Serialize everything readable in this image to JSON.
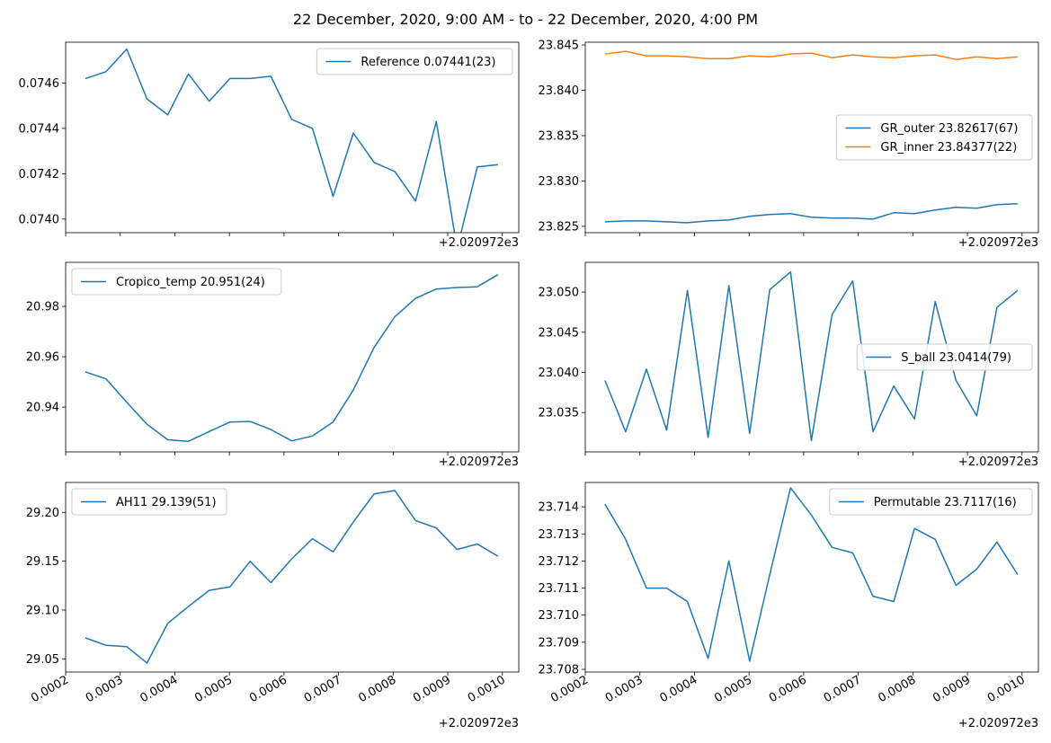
{
  "figure": {
    "title": "22 December, 2020, 9:00 AM - to - 22 December, 2020, 4:00 PM"
  },
  "colors": {
    "blue": "#1f77b4",
    "orange": "#ff7f0e"
  },
  "chart_data": [
    {
      "type": "line",
      "offset_label": "+2.020972e3",
      "xlim": [
        0.0002,
        0.00103
      ],
      "ylim": [
        0.07394,
        0.07478
      ],
      "yticks": [
        "0.0740",
        "0.0742",
        "0.0744",
        "0.0746"
      ],
      "legend_position": "top-right",
      "x": [
        0.000236,
        0.000274,
        0.000312,
        0.000349,
        0.000387,
        0.000425,
        0.000463,
        0.000501,
        0.000538,
        0.000576,
        0.000614,
        0.000652,
        0.00069,
        0.000727,
        0.000765,
        0.000803,
        0.000841,
        0.000879,
        0.000917,
        0.000954,
        0.000992
      ],
      "series": [
        {
          "name": "Reference 0.07441(23)",
          "color": "#1f77b4",
          "values": [
            0.07462,
            0.07465,
            0.07475,
            0.07453,
            0.07446,
            0.07464,
            0.07452,
            0.07462,
            0.07462,
            0.07463,
            0.07444,
            0.0744,
            0.0741,
            0.07438,
            0.07425,
            0.07421,
            0.07408,
            0.07443,
            0.07387,
            0.07423,
            0.07424
          ]
        }
      ]
    },
    {
      "type": "line",
      "offset_label": "+2.020972e3",
      "xlim": [
        0.0002,
        0.00103
      ],
      "ylim": [
        23.8243,
        23.8453
      ],
      "yticks": [
        "23.825",
        "23.830",
        "23.835",
        "23.840",
        "23.845"
      ],
      "legend_position": "center-right",
      "x": [
        0.000236,
        0.000274,
        0.000312,
        0.000349,
        0.000387,
        0.000425,
        0.000463,
        0.000501,
        0.000538,
        0.000576,
        0.000614,
        0.000652,
        0.00069,
        0.000727,
        0.000765,
        0.000803,
        0.000841,
        0.000879,
        0.000917,
        0.000954,
        0.000992
      ],
      "series": [
        {
          "name": "GR_outer 23.82617(67)",
          "color": "#1f77b4",
          "values": [
            23.8255,
            23.8256,
            23.8256,
            23.8255,
            23.8254,
            23.8256,
            23.8257,
            23.8261,
            23.8263,
            23.8264,
            23.826,
            23.8259,
            23.8259,
            23.8258,
            23.8265,
            23.8264,
            23.8268,
            23.8271,
            23.827,
            23.8274,
            23.8275
          ]
        },
        {
          "name": "GR_inner 23.84377(22)",
          "color": "#ff7f0e",
          "values": [
            23.844,
            23.8443,
            23.8438,
            23.8438,
            23.8437,
            23.8435,
            23.8435,
            23.8438,
            23.8437,
            23.844,
            23.8441,
            23.8436,
            23.8439,
            23.8437,
            23.8436,
            23.8438,
            23.8439,
            23.8434,
            23.8437,
            23.8435,
            23.8437
          ]
        }
      ]
    },
    {
      "type": "line",
      "offset_label": "+2.020972e3",
      "xlim": [
        0.0002,
        0.00103
      ],
      "ylim": [
        20.9222,
        20.9975
      ],
      "yticks": [
        "20.94",
        "20.96",
        "20.98"
      ],
      "legend_position": "top-left",
      "x": [
        0.000236,
        0.000274,
        0.000312,
        0.000349,
        0.000387,
        0.000425,
        0.000463,
        0.000501,
        0.000538,
        0.000576,
        0.000614,
        0.000652,
        0.00069,
        0.000727,
        0.000765,
        0.000803,
        0.000841,
        0.000879,
        0.000917,
        0.000954,
        0.000992
      ],
      "series": [
        {
          "name": "Cropico_temp 20.951(24)",
          "color": "#1f77b4",
          "values": [
            20.954,
            20.9512,
            20.9419,
            20.9332,
            20.927,
            20.9264,
            20.9303,
            20.9341,
            20.9343,
            20.9311,
            20.9266,
            20.9285,
            20.9341,
            20.9468,
            20.9637,
            20.9759,
            20.9832,
            20.9869,
            20.9875,
            20.9878,
            20.9926
          ]
        }
      ]
    },
    {
      "type": "line",
      "offset_label": "+2.020972e3",
      "xlim": [
        0.0002,
        0.00103
      ],
      "ylim": [
        23.0301,
        23.0537
      ],
      "yticks": [
        "23.035",
        "23.040",
        "23.045",
        "23.050"
      ],
      "legend_position": "center-right",
      "x": [
        0.000236,
        0.000274,
        0.000312,
        0.000349,
        0.000387,
        0.000425,
        0.000463,
        0.000501,
        0.000538,
        0.000576,
        0.000614,
        0.000652,
        0.00069,
        0.000727,
        0.000765,
        0.000803,
        0.000841,
        0.000879,
        0.000917,
        0.000954,
        0.000992
      ],
      "series": [
        {
          "name": "S_ball 23.0414(79)",
          "color": "#1f77b4",
          "values": [
            23.039,
            23.0326,
            23.0404,
            23.0328,
            23.0502,
            23.0319,
            23.0508,
            23.0324,
            23.0503,
            23.0525,
            23.0315,
            23.0472,
            23.0514,
            23.0326,
            23.0383,
            23.0342,
            23.0488,
            23.039,
            23.0346,
            23.0481,
            23.0502
          ]
        }
      ]
    },
    {
      "type": "line",
      "offset_label": "+2.020972e3",
      "xlim": [
        0.0002,
        0.00103
      ],
      "ylim": [
        29.0365,
        29.2306
      ],
      "yticks": [
        "29.05",
        "29.10",
        "29.15",
        "29.20"
      ],
      "legend_position": "top-left",
      "x": [
        0.000236,
        0.000274,
        0.000312,
        0.000349,
        0.000387,
        0.000425,
        0.000463,
        0.000501,
        0.000538,
        0.000576,
        0.000614,
        0.000652,
        0.00069,
        0.000727,
        0.000765,
        0.000803,
        0.000841,
        0.000879,
        0.000917,
        0.000954,
        0.000992
      ],
      "series": [
        {
          "name": "AH11 29.139(51)",
          "color": "#1f77b4",
          "values": [
            29.0715,
            29.0639,
            29.0624,
            29.0458,
            29.0864,
            29.1036,
            29.1201,
            29.1237,
            29.1499,
            29.128,
            29.1523,
            29.173,
            29.1595,
            29.1902,
            29.2188,
            29.2223,
            29.1916,
            29.184,
            29.162,
            29.1676,
            29.1551
          ]
        }
      ]
    },
    {
      "type": "line",
      "offset_label": "+2.020972e3",
      "xlim": [
        0.0002,
        0.00103
      ],
      "ylim": [
        23.7079,
        23.7149
      ],
      "yticks": [
        "23.708",
        "23.709",
        "23.710",
        "23.711",
        "23.712",
        "23.713",
        "23.714"
      ],
      "legend_position": "top-right",
      "x": [
        0.000236,
        0.000274,
        0.000312,
        0.000349,
        0.000387,
        0.000425,
        0.000463,
        0.000501,
        0.000538,
        0.000576,
        0.000614,
        0.000652,
        0.00069,
        0.000727,
        0.000765,
        0.000803,
        0.000841,
        0.000879,
        0.000917,
        0.000954,
        0.000992
      ],
      "series": [
        {
          "name": "Permutable 23.7117(16)",
          "color": "#1f77b4",
          "values": [
            23.7141,
            23.7128,
            23.711,
            23.711,
            23.7105,
            23.7084,
            23.712,
            23.7083,
            23.7115,
            23.7147,
            23.7137,
            23.7125,
            23.7123,
            23.7107,
            23.7105,
            23.7132,
            23.7128,
            23.7111,
            23.7117,
            23.7127,
            23.7115
          ]
        }
      ]
    }
  ],
  "shared_x_axis": {
    "tick_values": [
      0.0002,
      0.0003,
      0.0004,
      0.0005,
      0.0006,
      0.0007,
      0.0008,
      0.0009,
      0.001
    ],
    "tick_labels": [
      "0.0002",
      "0.0003",
      "0.0004",
      "0.0005",
      "0.0006",
      "0.0007",
      "0.0008",
      "0.0009",
      "0.0010"
    ]
  }
}
